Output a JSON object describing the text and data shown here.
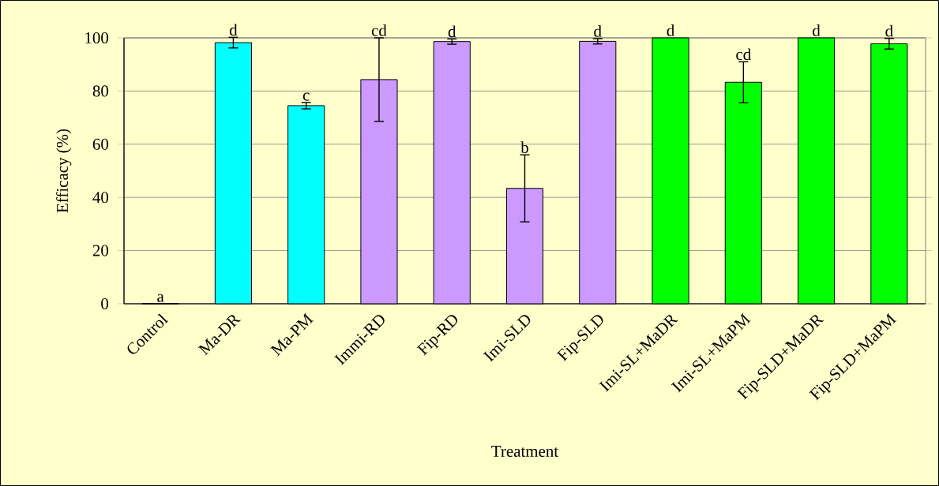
{
  "chart_data": {
    "type": "bar",
    "xlabel": "Treatment",
    "ylabel": "Efficacy (%)",
    "categories": [
      "Control",
      "Ma-DR",
      "Ma-PM",
      "Immi-RD",
      "Fip-RD",
      "Imi-SLD",
      "Fip-SLD",
      "Imi-SL+MaDR",
      "Imi-SL+MaPM",
      "Fip-SLD+MaDR",
      "Fip-SLD+MaPM"
    ],
    "values": [
      0,
      98.2,
      74.5,
      84.3,
      98.6,
      43.4,
      98.7,
      100,
      83.3,
      100,
      97.8
    ],
    "errors": [
      null,
      2,
      1.2,
      15.7,
      1,
      12.6,
      1,
      null,
      7.7,
      null,
      2
    ],
    "value_labels": [
      "a",
      "d",
      "c",
      "cd",
      "d",
      "b",
      "d",
      "d",
      "cd",
      "d",
      "d"
    ],
    "colors": [
      "#00ffff",
      "#00ffff",
      "#00ffff",
      "#cc99ff",
      "#cc99ff",
      "#cc99ff",
      "#cc99ff",
      "#00ff00",
      "#00ff00",
      "#00ff00",
      "#00ff00"
    ],
    "ylim": [
      0,
      100
    ],
    "yticks": [
      0,
      20,
      40,
      60,
      80,
      100
    ],
    "grid": "y"
  }
}
